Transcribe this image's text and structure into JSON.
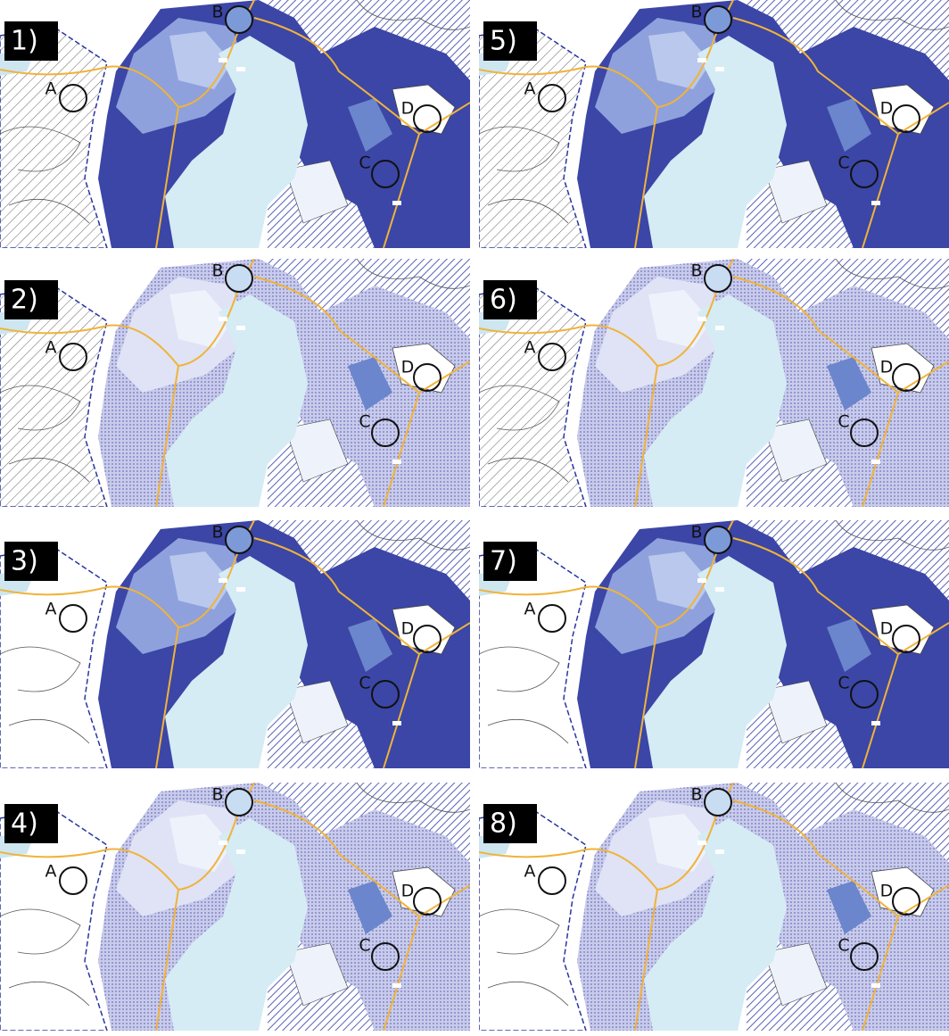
{
  "panels": [
    {
      "label": "1)",
      "markers": [
        "A",
        "B",
        "C",
        "D"
      ]
    },
    {
      "label": "5)",
      "markers": [
        "A",
        "B",
        "C",
        "D"
      ]
    },
    {
      "label": "2)",
      "markers": [
        "A",
        "B",
        "C",
        "D"
      ]
    },
    {
      "label": "6)",
      "markers": [
        "A",
        "B",
        "C",
        "D"
      ]
    },
    {
      "label": "3)",
      "markers": [
        "A",
        "B",
        "C",
        "D"
      ]
    },
    {
      "label": "7)",
      "markers": [
        "A",
        "B",
        "C",
        "D"
      ]
    },
    {
      "label": "4)",
      "markers": [
        "A",
        "B",
        "C",
        "D"
      ]
    },
    {
      "label": "8)",
      "markers": [
        "A",
        "B",
        "C",
        "D"
      ]
    }
  ]
}
